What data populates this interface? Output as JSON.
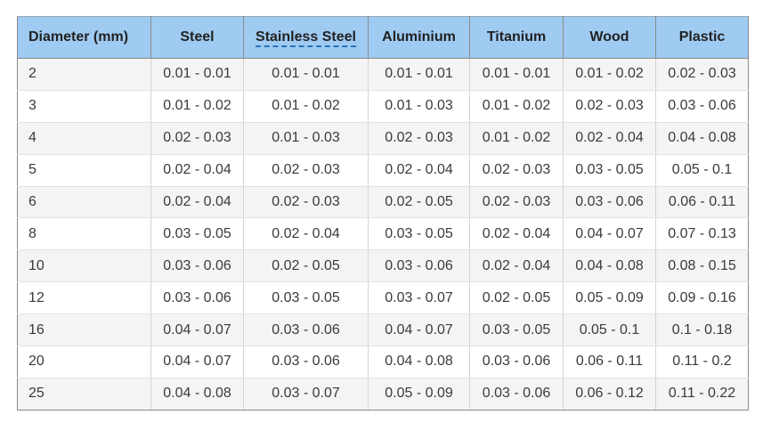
{
  "table": {
    "headers": [
      "Diameter (mm)",
      "Steel",
      "Stainless Steel",
      "Aluminium",
      "Titanium",
      "Wood",
      "Plastic"
    ],
    "rows": [
      [
        "2",
        "0.01 - 0.01",
        "0.01 - 0.01",
        "0.01 - 0.01",
        "0.01 - 0.01",
        "0.01 - 0.02",
        "0.02 - 0.03"
      ],
      [
        "3",
        "0.01 - 0.02",
        "0.01 - 0.02",
        "0.01 - 0.03",
        "0.01 - 0.02",
        "0.02 - 0.03",
        "0.03 - 0.06"
      ],
      [
        "4",
        "0.02 - 0.03",
        "0.01 - 0.03",
        "0.02 - 0.03",
        "0.01 - 0.02",
        "0.02 - 0.04",
        "0.04 - 0.08"
      ],
      [
        "5",
        "0.02 - 0.04",
        "0.02 - 0.03",
        "0.02 - 0.04",
        "0.02 - 0.03",
        "0.03 - 0.05",
        "0.05 - 0.1"
      ],
      [
        "6",
        "0.02 - 0.04",
        "0.02 - 0.03",
        "0.02 - 0.05",
        "0.02 - 0.03",
        "0.03 - 0.06",
        "0.06 - 0.11"
      ],
      [
        "8",
        "0.03 - 0.05",
        "0.02 - 0.04",
        "0.03 - 0.05",
        "0.02 - 0.04",
        "0.04 - 0.07",
        "0.07 - 0.13"
      ],
      [
        "10",
        "0.03 - 0.06",
        "0.02 - 0.05",
        "0.03 - 0.06",
        "0.02 - 0.04",
        "0.04 - 0.08",
        "0.08 - 0.15"
      ],
      [
        "12",
        "0.03 - 0.06",
        "0.03 - 0.05",
        "0.03 - 0.07",
        "0.02 - 0.05",
        "0.05 - 0.09",
        "0.09 - 0.16"
      ],
      [
        "16",
        "0.04 - 0.07",
        "0.03 - 0.06",
        "0.04 - 0.07",
        "0.03 - 0.05",
        "0.05 - 0.1",
        "0.1 - 0.18"
      ],
      [
        "20",
        "0.04 - 0.07",
        "0.03 - 0.06",
        "0.04 - 0.08",
        "0.03 - 0.06",
        "0.06 - 0.11",
        "0.11 - 0.2"
      ],
      [
        "25",
        "0.04 - 0.08",
        "0.03 - 0.07",
        "0.05 - 0.09",
        "0.03 - 0.06",
        "0.06 - 0.12",
        "0.11 - 0.22"
      ]
    ]
  },
  "colors": {
    "header_bg": "#9fcbf2",
    "row_alt_bg": "#f4f4f4",
    "abbr_underline": "#2a6fb8"
  }
}
